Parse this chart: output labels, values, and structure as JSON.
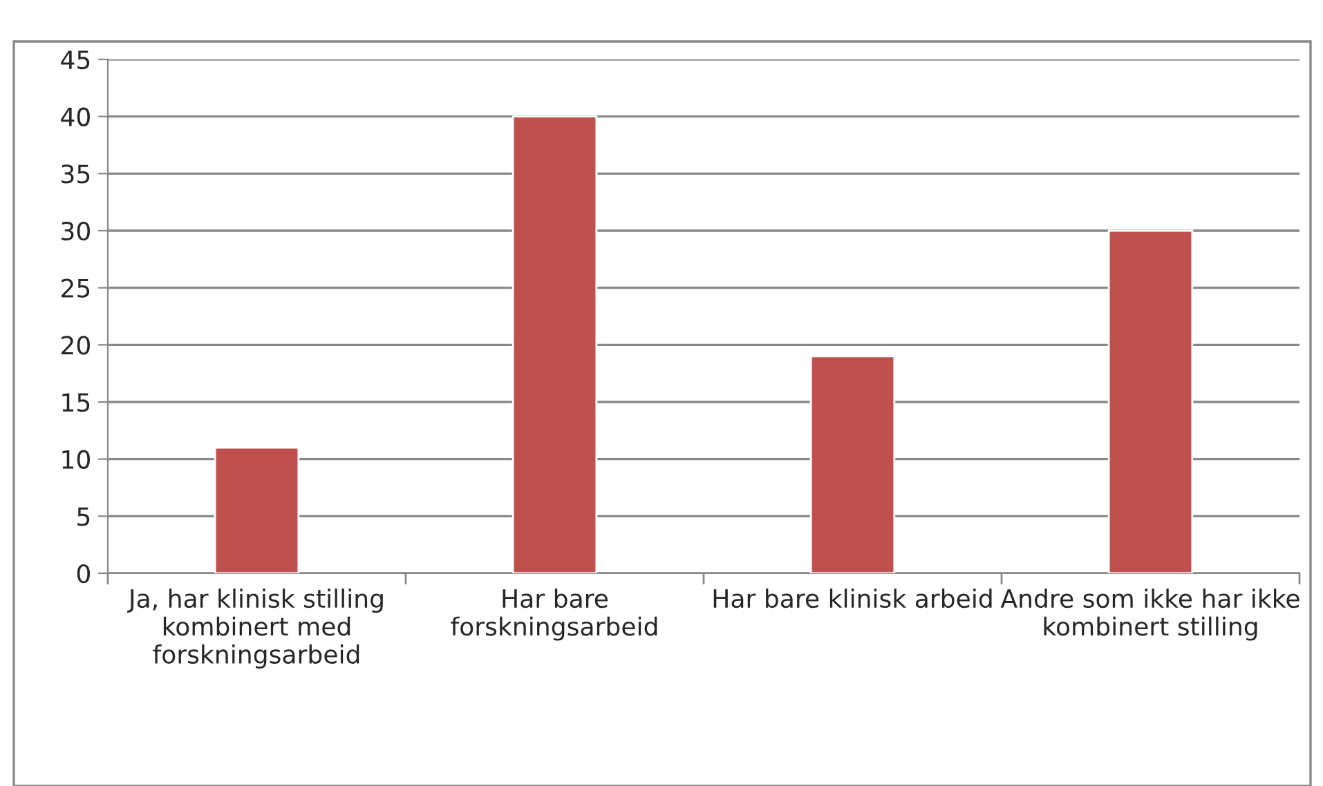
{
  "chart_data": {
    "type": "bar",
    "categories": [
      "Ja, har klinisk stilling kombinert med forskningsarbeid",
      "Har bare forskningsarbeid",
      "Har bare klinisk arbeid",
      "Andre som ikke har ikke kombinert stilling"
    ],
    "series": [
      {
        "color": "#c0504d",
        "values": [
          11,
          40,
          19,
          30
        ]
      }
    ],
    "ylim": [
      0,
      45
    ],
    "yticks": [
      0,
      5,
      10,
      15,
      20,
      25,
      30,
      35,
      40,
      45
    ],
    "grid": "y",
    "legend": false
  }
}
